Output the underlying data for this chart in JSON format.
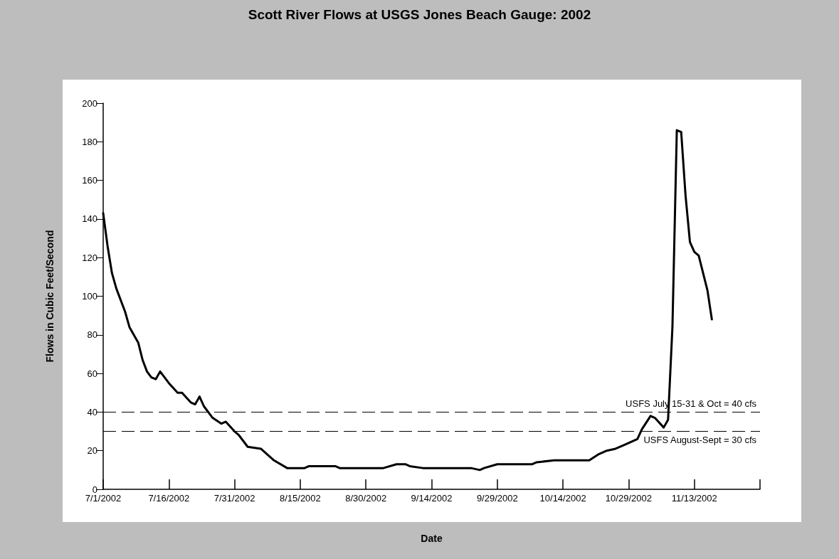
{
  "chart_data": {
    "type": "line",
    "title": "Scott River Flows at USGS Jones Beach Gauge: 2002",
    "xlabel": "Date",
    "ylabel": "Flows in Cubic Feet/Second",
    "x": [
      "2002-07-01",
      "2002-07-02",
      "2002-07-03",
      "2002-07-04",
      "2002-07-06",
      "2002-07-07",
      "2002-07-09",
      "2002-07-10",
      "2002-07-11",
      "2002-07-12",
      "2002-07-13",
      "2002-07-14",
      "2002-07-16",
      "2002-07-18",
      "2002-07-19",
      "2002-07-21",
      "2002-07-22",
      "2002-07-23",
      "2002-07-24",
      "2002-07-26",
      "2002-07-28",
      "2002-07-29",
      "2002-07-31",
      "2002-08-01",
      "2002-08-03",
      "2002-08-06",
      "2002-08-09",
      "2002-08-12",
      "2002-08-16",
      "2002-08-17",
      "2002-08-23",
      "2002-08-24",
      "2002-08-28",
      "2002-09-03",
      "2002-09-06",
      "2002-09-08",
      "2002-09-09",
      "2002-09-12",
      "2002-09-23",
      "2002-09-25",
      "2002-09-26",
      "2002-09-29",
      "2002-10-07",
      "2002-10-08",
      "2002-10-12",
      "2002-10-20",
      "2002-10-22",
      "2002-10-24",
      "2002-10-26",
      "2002-10-28",
      "2002-10-31",
      "2002-11-01",
      "2002-11-03",
      "2002-11-04",
      "2002-11-06",
      "2002-11-07",
      "2002-11-08",
      "2002-11-09",
      "2002-11-10",
      "2002-11-11",
      "2002-11-12",
      "2002-11-13",
      "2002-11-14",
      "2002-11-16",
      "2002-11-17"
    ],
    "series": [
      {
        "color": "#000000",
        "values": [
          143,
          126,
          112,
          104,
          92,
          84,
          76,
          67,
          61,
          58,
          57,
          61,
          55,
          50,
          50,
          45,
          44,
          48,
          43,
          37,
          34,
          35,
          30,
          28,
          22,
          21,
          15,
          11,
          11,
          12,
          12,
          11,
          11,
          11,
          13,
          13,
          12,
          11,
          11,
          10,
          11,
          13,
          13,
          14,
          15,
          15,
          18,
          20,
          21,
          23,
          26,
          31,
          38,
          37,
          32,
          36,
          84,
          186,
          185,
          152,
          128,
          123,
          121,
          103,
          88
        ]
      }
    ],
    "xlim": [
      "2002-07-01",
      "2002-11-28"
    ],
    "xticks": [
      {
        "value": "2002-07-01",
        "label": "7/1/2002"
      },
      {
        "value": "2002-07-16",
        "label": "7/16/2002"
      },
      {
        "value": "2002-07-31",
        "label": "7/31/2002"
      },
      {
        "value": "2002-08-15",
        "label": "8/15/2002"
      },
      {
        "value": "2002-08-30",
        "label": "8/30/2002"
      },
      {
        "value": "2002-09-14",
        "label": "9/14/2002"
      },
      {
        "value": "2002-09-29",
        "label": "9/29/2002"
      },
      {
        "value": "2002-10-14",
        "label": "10/14/2002"
      },
      {
        "value": "2002-10-29",
        "label": "10/29/2002"
      },
      {
        "value": "2002-11-13",
        "label": "11/13/2002"
      },
      {
        "value": "2002-11-28",
        "label": null
      }
    ],
    "ylim": [
      0,
      200
    ],
    "yticks": [
      0,
      20,
      40,
      60,
      80,
      100,
      120,
      140,
      160,
      180,
      200
    ],
    "ref_lines": [
      {
        "axis": "y",
        "value": 40,
        "label": "USFS July 15-31 & Oct = 40 cfs",
        "color": "#000000",
        "line_style": "dashed"
      },
      {
        "axis": "y",
        "value": 30,
        "label": "USFS August-Sept = 30 cfs",
        "color": "#000000",
        "line_style": "dashed"
      }
    ],
    "grid": false,
    "marker": "none",
    "line_style": "solid"
  }
}
